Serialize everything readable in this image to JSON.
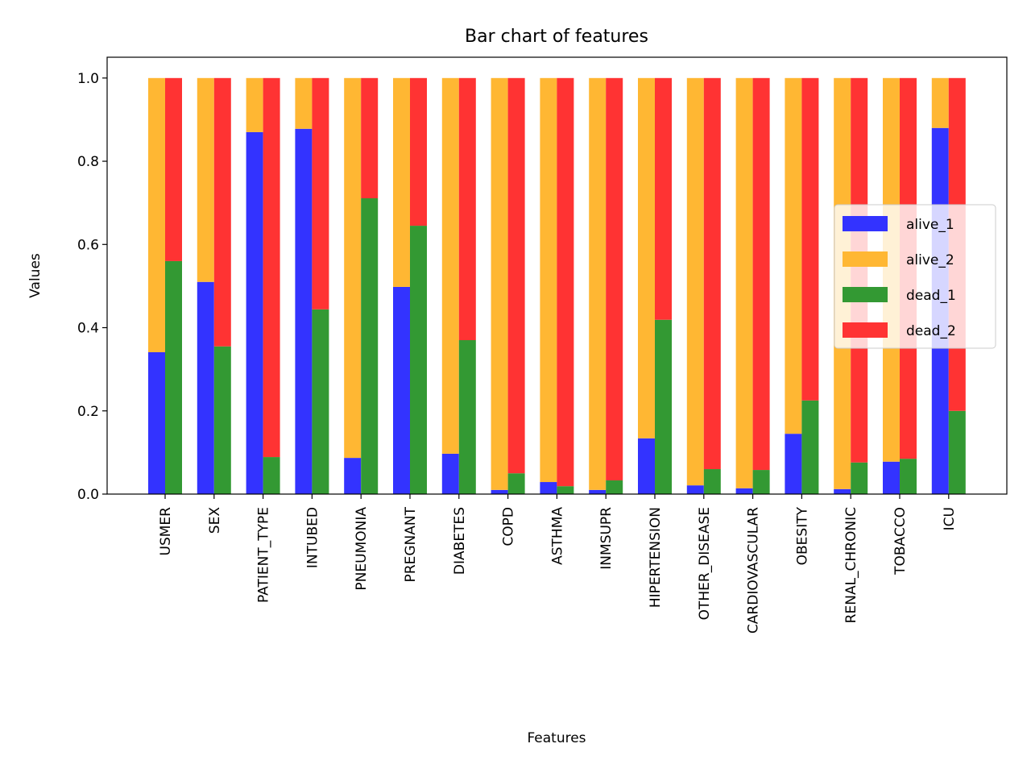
{
  "chart_data": {
    "type": "bar",
    "title": "Bar chart of features",
    "xlabel": "Features",
    "ylabel": "Values",
    "categories": [
      "USMER",
      "SEX",
      "PATIENT_TYPE",
      "INTUBED",
      "PNEUMONIA",
      "PREGNANT",
      "DIABETES",
      "COPD",
      "ASTHMA",
      "INMSUPR",
      "HIPERTENSION",
      "OTHER_DISEASE",
      "CARDIOVASCULAR",
      "OBESITY",
      "RENAL_CHRONIC",
      "TOBACCO",
      "ICU"
    ],
    "series": [
      {
        "name": "alive_1",
        "color": "#3333ff",
        "values": [
          0.341,
          0.51,
          0.87,
          0.878,
          0.087,
          0.498,
          0.097,
          0.01,
          0.029,
          0.01,
          0.134,
          0.021,
          0.014,
          0.145,
          0.012,
          0.078,
          0.88
        ]
      },
      {
        "name": "alive_2",
        "color": "#ffb733",
        "values": [
          0.659,
          0.49,
          0.13,
          0.122,
          0.913,
          0.502,
          0.903,
          0.99,
          0.971,
          0.99,
          0.866,
          0.979,
          0.986,
          0.855,
          0.988,
          0.922,
          0.12
        ]
      },
      {
        "name": "dead_1",
        "color": "#339933",
        "values": [
          0.56,
          0.355,
          0.089,
          0.444,
          0.711,
          0.645,
          0.37,
          0.05,
          0.019,
          0.033,
          0.419,
          0.06,
          0.058,
          0.225,
          0.076,
          0.085,
          0.2
        ]
      },
      {
        "name": "dead_2",
        "color": "#ff3333",
        "values": [
          0.44,
          0.645,
          0.911,
          0.556,
          0.289,
          0.355,
          0.63,
          0.95,
          0.981,
          0.967,
          0.581,
          0.94,
          0.942,
          0.775,
          0.924,
          0.915,
          0.8
        ]
      }
    ],
    "ylim": [
      0,
      1.05
    ],
    "yticks": [
      {
        "value": 0,
        "label": "0.0"
      },
      {
        "value": 0.2,
        "label": "0.2"
      },
      {
        "value": 0.4,
        "label": "0.4"
      },
      {
        "value": 0.6,
        "label": "0.6"
      },
      {
        "value": 0.8,
        "label": "0.8"
      },
      {
        "value": 1,
        "label": "1.0"
      }
    ],
    "legend": "center right"
  }
}
